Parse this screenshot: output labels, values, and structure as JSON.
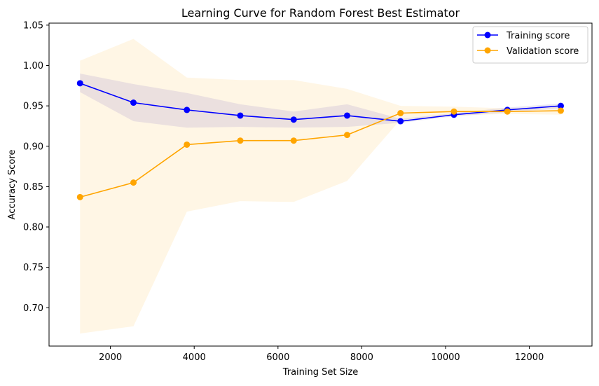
{
  "chart_data": {
    "type": "line",
    "title": "Learning Curve for Random Forest Best Estimator",
    "xlabel": "Training Set Size",
    "ylabel": "Accuracy Score",
    "xlim": [
      535,
      13495
    ],
    "ylim": [
      0.6525,
      1.0525
    ],
    "xticks": [
      2000,
      4000,
      6000,
      8000,
      10000,
      12000
    ],
    "yticks": [
      0.7,
      0.75,
      0.8,
      0.85,
      0.9,
      0.95,
      1.0,
      1.05
    ],
    "grid": false,
    "legend_position": "top-right",
    "x": [
      1275,
      2550,
      3825,
      5100,
      6375,
      7650,
      8925,
      10200,
      11475,
      12750
    ],
    "series": [
      {
        "name": "Training score",
        "color": "#0000ff",
        "band_color": "#9a8cc8",
        "values": [
          0.978,
          0.954,
          0.945,
          0.938,
          0.933,
          0.938,
          0.931,
          0.939,
          0.945,
          0.95
        ],
        "lower": [
          0.967,
          0.931,
          0.923,
          0.924,
          0.923,
          0.924,
          0.929,
          0.937,
          0.942,
          0.947
        ],
        "upper": [
          0.99,
          0.977,
          0.966,
          0.952,
          0.943,
          0.952,
          0.934,
          0.941,
          0.948,
          0.953
        ]
      },
      {
        "name": "Validation score",
        "color": "#ffa500",
        "band_color": "#ffa500",
        "values": [
          0.837,
          0.855,
          0.902,
          0.907,
          0.907,
          0.914,
          0.941,
          0.943,
          0.943,
          0.944
        ],
        "lower": [
          0.668,
          0.677,
          0.819,
          0.832,
          0.831,
          0.857,
          0.933,
          0.938,
          0.94,
          0.939
        ],
        "upper": [
          1.006,
          1.033,
          0.985,
          0.982,
          0.982,
          0.971,
          0.95,
          0.949,
          0.947,
          0.949
        ]
      }
    ]
  }
}
